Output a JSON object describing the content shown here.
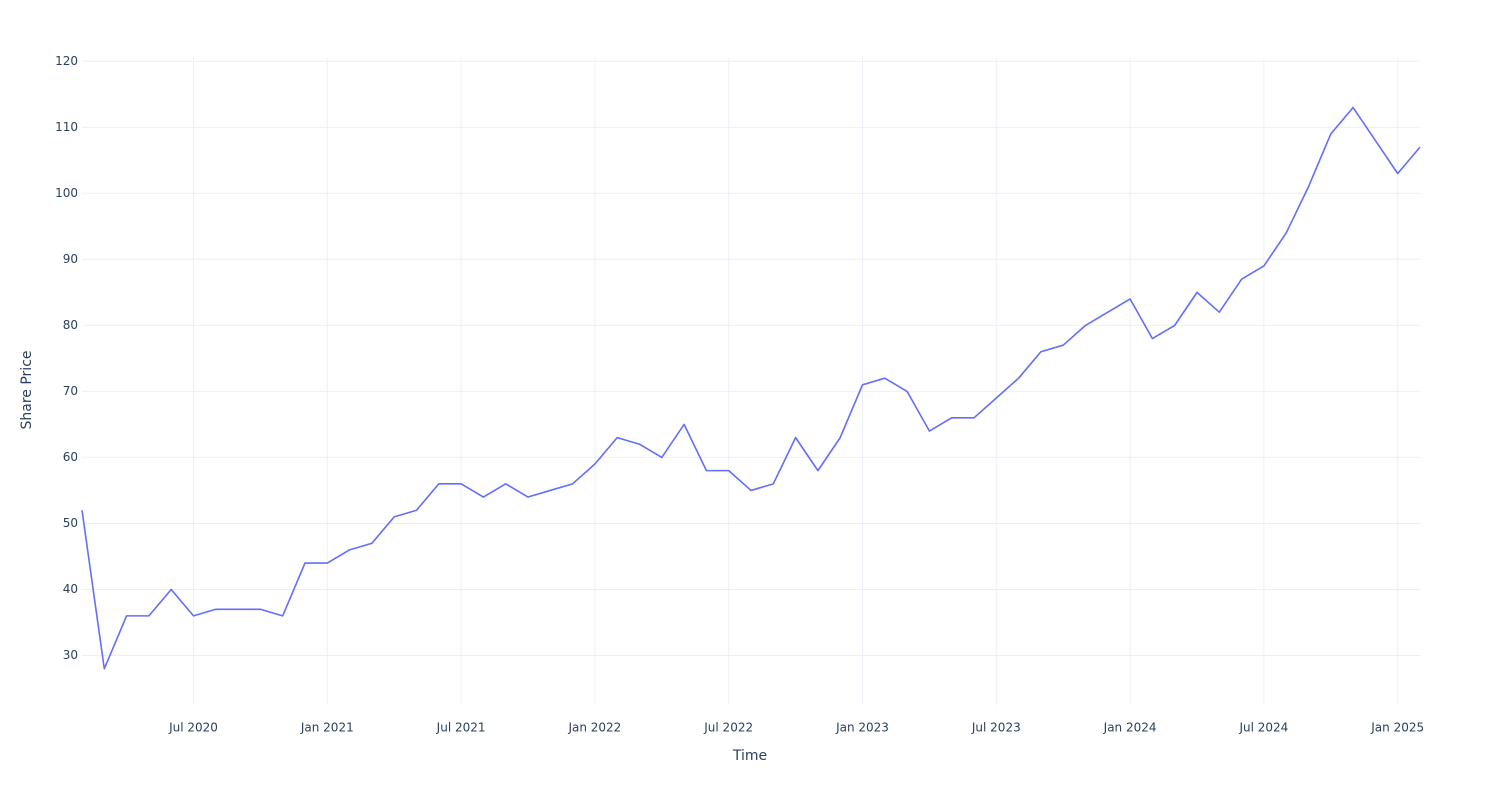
{
  "chart_data": {
    "type": "line",
    "x_label": "Time",
    "y_label": "Share Price",
    "x": [
      "2020-02",
      "2020-03",
      "2020-04",
      "2020-05",
      "2020-06",
      "2020-07",
      "2020-08",
      "2020-09",
      "2020-10",
      "2020-11",
      "2020-12",
      "2021-01",
      "2021-02",
      "2021-03",
      "2021-04",
      "2021-05",
      "2021-06",
      "2021-07",
      "2021-08",
      "2021-09",
      "2021-10",
      "2021-11",
      "2021-12",
      "2022-01",
      "2022-02",
      "2022-03",
      "2022-04",
      "2022-05",
      "2022-06",
      "2022-07",
      "2022-08",
      "2022-09",
      "2022-10",
      "2022-11",
      "2022-12",
      "2023-01",
      "2023-02",
      "2023-03",
      "2023-04",
      "2023-05",
      "2023-06",
      "2023-07",
      "2023-08",
      "2023-09",
      "2023-10",
      "2023-11",
      "2023-12",
      "2024-01",
      "2024-02",
      "2024-03",
      "2024-04",
      "2024-05",
      "2024-06",
      "2024-07",
      "2024-08",
      "2024-09",
      "2024-10",
      "2024-11",
      "2024-12",
      "2025-01",
      "2025-02"
    ],
    "values": [
      52,
      28,
      36,
      36,
      40,
      36,
      37,
      37,
      37,
      36,
      44,
      44,
      46,
      47,
      51,
      52,
      56,
      56,
      54,
      56,
      54,
      55,
      56,
      59,
      63,
      62,
      60,
      65,
      58,
      58,
      55,
      56,
      63,
      58,
      63,
      71,
      72,
      70,
      64,
      66,
      66,
      69,
      72,
      76,
      77,
      80,
      82,
      84,
      78,
      80,
      85,
      82,
      87,
      89,
      94,
      101,
      109,
      113,
      108,
      103,
      107
    ],
    "color": "#636efa",
    "xlim": [
      "2020-02",
      "2025-02"
    ],
    "xticks": [
      {
        "value": "2020-07",
        "label": "Jul 2020"
      },
      {
        "value": "2021-01",
        "label": "Jan 2021"
      },
      {
        "value": "2021-07",
        "label": "Jul 2021"
      },
      {
        "value": "2022-01",
        "label": "Jan 2022"
      },
      {
        "value": "2022-07",
        "label": "Jul 2022"
      },
      {
        "value": "2023-01",
        "label": "Jan 2023"
      },
      {
        "value": "2023-07",
        "label": "Jul 2023"
      },
      {
        "value": "2024-01",
        "label": "Jan 2024"
      },
      {
        "value": "2024-07",
        "label": "Jul 2024"
      },
      {
        "value": "2025-01",
        "label": "Jan 2025"
      }
    ],
    "ylim": [
      22.5,
      120.5
    ],
    "yticks": [
      30,
      40,
      50,
      60,
      70,
      80,
      90,
      100,
      110,
      120
    ],
    "grid": true
  }
}
